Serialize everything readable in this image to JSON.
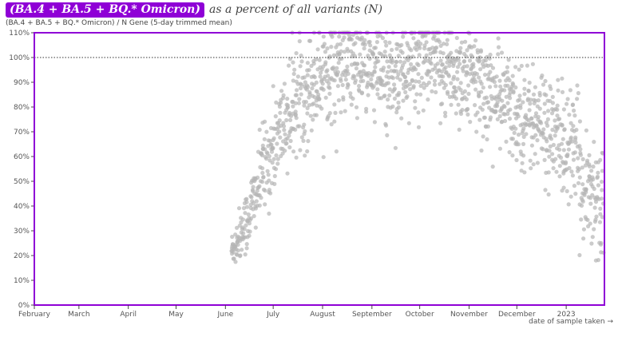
{
  "title": {
    "badge": "(BA.4 + BA.5 + BQ.* Omicron)",
    "rest": "as a percent of all variants (N)"
  },
  "colors": {
    "accent": "#8f00d6",
    "points": "#b5b5b5",
    "reference_line": "#333333"
  },
  "chart_data": {
    "type": "scatter",
    "title": "(BA.4 + BA.5 + BQ.* Omicron) as a percent of all variants (N)",
    "subtitle": "(BA.4 + BA.5 + BQ.* Omicron) / N Gene (5-day trimmed mean)",
    "xlabel": "date of sample taken →",
    "ylabel": "",
    "x_type": "date",
    "xlim": [
      "2022-02-01",
      "2023-01-25"
    ],
    "ylim": [
      0,
      110
    ],
    "y_unit": "%",
    "y_ticks": [
      0,
      10,
      20,
      30,
      40,
      50,
      60,
      70,
      80,
      90,
      100,
      110
    ],
    "x_ticks": [
      {
        "date": "2022-02-01",
        "label": "February"
      },
      {
        "date": "2022-03-01",
        "label": "March"
      },
      {
        "date": "2022-04-01",
        "label": "April"
      },
      {
        "date": "2022-05-01",
        "label": "May"
      },
      {
        "date": "2022-06-01",
        "label": "June"
      },
      {
        "date": "2022-07-01",
        "label": "July"
      },
      {
        "date": "2022-08-01",
        "label": "August"
      },
      {
        "date": "2022-09-01",
        "label": "September"
      },
      {
        "date": "2022-10-01",
        "label": "October"
      },
      {
        "date": "2022-11-01",
        "label": "November"
      },
      {
        "date": "2022-12-01",
        "label": "December"
      },
      {
        "date": "2023-01-01",
        "label": "2023"
      }
    ],
    "reference_line": {
      "y": 100,
      "style": "dotted"
    },
    "y_clip_max": 110,
    "grid": false,
    "series": [
      {
        "name": "",
        "trend": [
          {
            "x": "2022-06-05",
            "y": 22
          },
          {
            "x": "2022-06-15",
            "y": 35
          },
          {
            "x": "2022-06-25",
            "y": 55
          },
          {
            "x": "2022-07-05",
            "y": 70
          },
          {
            "x": "2022-07-15",
            "y": 82
          },
          {
            "x": "2022-08-01",
            "y": 95
          },
          {
            "x": "2022-08-20",
            "y": 97
          },
          {
            "x": "2022-09-10",
            "y": 92
          },
          {
            "x": "2022-10-01",
            "y": 97
          },
          {
            "x": "2022-10-20",
            "y": 96
          },
          {
            "x": "2022-11-10",
            "y": 88
          },
          {
            "x": "2022-12-01",
            "y": 78
          },
          {
            "x": "2022-12-20",
            "y": 72
          },
          {
            "x": "2023-01-05",
            "y": 62
          },
          {
            "x": "2023-01-15",
            "y": 47
          },
          {
            "x": "2023-01-24",
            "y": 42
          }
        ],
        "spread_pct": [
          {
            "x": "2022-06-05",
            "s": 4
          },
          {
            "x": "2022-06-25",
            "s": 9
          },
          {
            "x": "2022-07-15",
            "s": 11
          },
          {
            "x": "2022-08-15",
            "s": 10
          },
          {
            "x": "2022-10-15",
            "s": 11
          },
          {
            "x": "2022-12-01",
            "s": 10
          },
          {
            "x": "2023-01-10",
            "s": 12
          },
          {
            "x": "2023-01-24",
            "s": 13
          }
        ],
        "date_range": [
          "2022-06-05",
          "2023-01-24"
        ],
        "points_per_day": 6
      }
    ]
  }
}
